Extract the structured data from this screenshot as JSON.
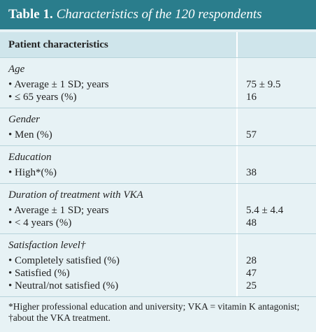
{
  "title": {
    "label": "Table 1.",
    "text": "Characteristics of the 120 respondents"
  },
  "header": "Patient characteristics",
  "sections": [
    {
      "heading": "Age",
      "rows": [
        {
          "label": "Average ± 1 SD; years",
          "value": "75 ± 9.5"
        },
        {
          "label": "≤ 65 years (%)",
          "value": "16"
        }
      ]
    },
    {
      "heading": "Gender",
      "rows": [
        {
          "label": "Men (%)",
          "value": "57"
        }
      ]
    },
    {
      "heading": "Education",
      "rows": [
        {
          "label": "High*(%)",
          "value": "38"
        }
      ]
    },
    {
      "heading": "Duration of treatment with VKA",
      "rows": [
        {
          "label": "Average ± 1 SD; years",
          "value": "5.4 ± 4.4"
        },
        {
          "label": "< 4 years (%)",
          "value": "48"
        }
      ]
    },
    {
      "heading": "Satisfaction level†",
      "rows": [
        {
          "label": "Completely satisfied (%)",
          "value": "28"
        },
        {
          "label": "Satisfied (%)",
          "value": "47"
        },
        {
          "label": "Neutral/not satisfied (%)",
          "value": "25"
        }
      ]
    }
  ],
  "footnote": "*Higher professional education and university; VKA = vitamin K antagonist; †about the VKA treatment."
}
